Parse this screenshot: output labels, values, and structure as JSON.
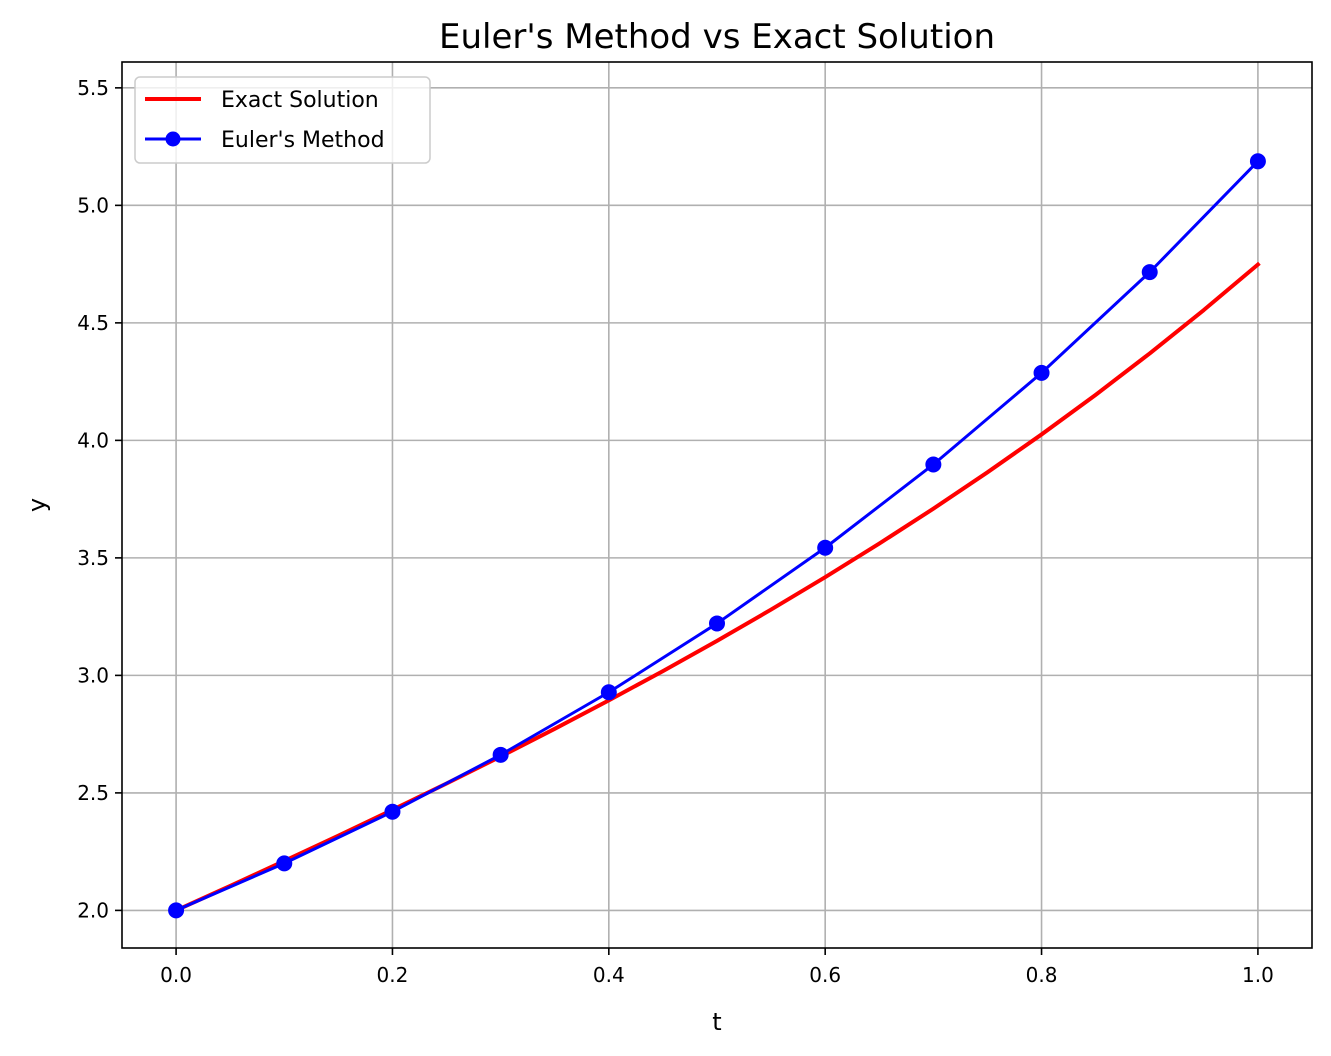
{
  "chart_data": {
    "type": "line",
    "title": "Euler's Method vs Exact Solution",
    "xlabel": "t",
    "ylabel": "y",
    "xlim": [
      -0.05,
      1.05
    ],
    "ylim": [
      1.84,
      5.61
    ],
    "xticks": [
      0.0,
      0.2,
      0.4,
      0.6,
      0.8,
      1.0
    ],
    "xtick_labels": [
      "0.0",
      "0.2",
      "0.4",
      "0.6",
      "0.8",
      "1.0"
    ],
    "yticks": [
      2.0,
      2.5,
      3.0,
      3.5,
      4.0,
      4.5,
      5.0,
      5.5
    ],
    "ytick_labels": [
      "2.0",
      "2.5",
      "3.0",
      "3.5",
      "4.0",
      "4.5",
      "5.0",
      "5.5"
    ],
    "grid": true,
    "legend_position": "upper-left",
    "series": [
      {
        "name": "Exact Solution",
        "color": "#ff0000",
        "marker": "none",
        "x": [
          0.0,
          0.05,
          0.1,
          0.15,
          0.2,
          0.25,
          0.3,
          0.35,
          0.4,
          0.45,
          0.5,
          0.55,
          0.6,
          0.65,
          0.7,
          0.75,
          0.8,
          0.85,
          0.9,
          0.95,
          1.0
        ],
        "y": [
          2.0,
          2.1043,
          2.2103,
          2.3181,
          2.4279,
          2.54,
          2.6549,
          2.7726,
          2.8936,
          3.0183,
          3.1469,
          3.28,
          3.4178,
          3.5608,
          3.7093,
          3.864,
          4.0253,
          4.1938,
          4.37,
          4.5546,
          4.7483
        ]
      },
      {
        "name": "Euler's Method",
        "color": "#0000ff",
        "marker": "circle",
        "x": [
          0.0,
          0.1,
          0.2,
          0.3,
          0.4,
          0.5,
          0.6,
          0.7,
          0.8,
          0.9,
          1.0
        ],
        "y": [
          2.0,
          2.2,
          2.42,
          2.662,
          2.9282,
          3.221,
          3.5431,
          3.8974,
          4.2872,
          4.7159,
          5.1875
        ]
      }
    ]
  }
}
